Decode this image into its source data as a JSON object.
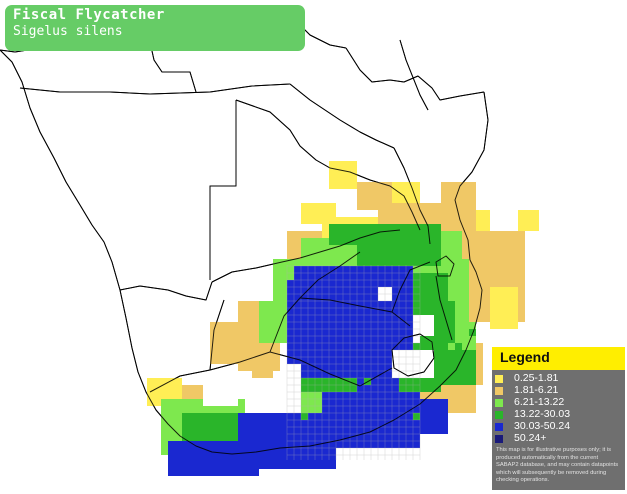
{
  "header": {
    "common_name": "Fiscal Flycatcher",
    "scientific_name": "Sigelus silens"
  },
  "legend": {
    "title": "Legend",
    "items": [
      {
        "label": "0.25-1.81",
        "color": "#ffee55"
      },
      {
        "label": "1.81-6.21",
        "color": "#f0c866"
      },
      {
        "label": "6.21-13.22",
        "color": "#7ee84e"
      },
      {
        "label": "13.22-30.03",
        "color": "#2ab52a"
      },
      {
        "label": "30.03-50.24",
        "color": "#1a28d0"
      },
      {
        "label": "50.24+",
        "color": "#1a1a7a"
      }
    ],
    "disclaimer": "This map is for illustrative purposes only; it is produced automatically from the current SABAP2 database, and may contain datapoints which will subsequently be removed during checking operations."
  },
  "map_colors": {
    "land": "#ffffff",
    "border": "#000000",
    "grid": "#b0b0b0"
  }
}
